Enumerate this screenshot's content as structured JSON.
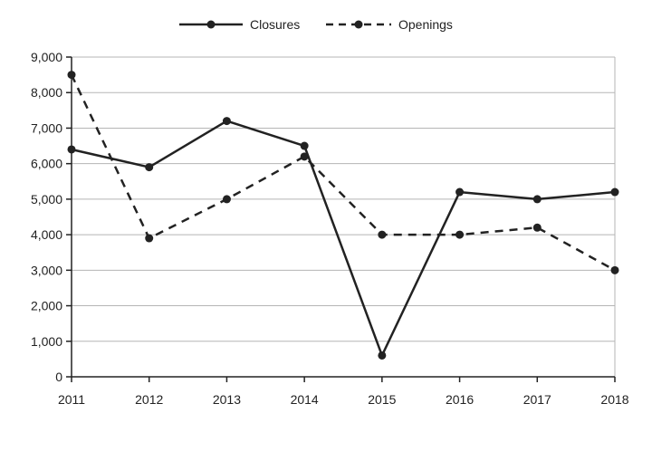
{
  "chart_data": {
    "type": "line",
    "title": "",
    "xlabel": "",
    "ylabel": "",
    "x": [
      2011,
      2012,
      2013,
      2014,
      2015,
      2016,
      2017,
      2018
    ],
    "x_tick_labels": [
      "2011",
      "2012",
      "2013",
      "2014",
      "2015",
      "2016",
      "2017",
      "2018"
    ],
    "ylim": [
      0,
      9000
    ],
    "y_ticks": [
      0,
      1000,
      2000,
      3000,
      4000,
      5000,
      6000,
      7000,
      8000,
      9000
    ],
    "y_tick_labels": [
      "0",
      "1,000",
      "2,000",
      "3,000",
      "4,000",
      "5,000",
      "6,000",
      "7,000",
      "8,000",
      "9,000"
    ],
    "grid": "horizontal",
    "legend_position": "top-center",
    "series": [
      {
        "name": "Closures",
        "style": "solid",
        "color": "#222222",
        "values": [
          6400,
          5900,
          7200,
          6500,
          600,
          5200,
          5000,
          5200
        ]
      },
      {
        "name": "Openings",
        "style": "dashed",
        "color": "#222222",
        "values": [
          8500,
          3900,
          5000,
          6200,
          4000,
          4000,
          4200,
          3000
        ]
      }
    ]
  }
}
